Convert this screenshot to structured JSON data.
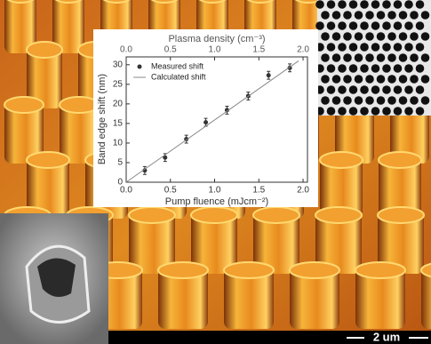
{
  "chart_data": {
    "type": "scatter",
    "xlabel": "Pump fluence (mJcm⁻²)",
    "x2label": "Plasma density (cm⁻³)",
    "ylabel": "Band edge shift (nm)",
    "xlim": [
      0,
      2.05
    ],
    "xticks": [
      {
        "value": 0,
        "label": "0.0"
      },
      0.5,
      {
        "value": 1,
        "label": "1.0"
      },
      1.5,
      {
        "value": 2,
        "label": "2.0"
      }
    ],
    "x2lim": [
      0,
      2.05
    ],
    "x2ticks": [
      {
        "value": 0,
        "label": "0.0"
      },
      0.5,
      {
        "value": 1,
        "label": "1.0"
      },
      1.5,
      {
        "value": 2,
        "label": "2.0"
      }
    ],
    "ylim": [
      0,
      32
    ],
    "yticks": [
      0,
      5,
      10,
      15,
      20,
      25,
      30
    ],
    "legend": "upper left",
    "series": [
      {
        "name": "Measured shift",
        "color": "#333333",
        "x": [
          0.21,
          0.44,
          0.68,
          0.9,
          1.14,
          1.38,
          1.61,
          1.85
        ],
        "values": [
          3,
          6.3,
          11,
          15.3,
          18.4,
          22,
          27.3,
          29.2
        ],
        "errors": [
          1,
          1,
          1,
          1,
          1,
          1,
          1,
          1
        ]
      },
      {
        "name": "Calculated shift",
        "color": "#888888",
        "kind": "line",
        "x": [
          0,
          1.95
        ],
        "values": [
          0,
          31
        ]
      }
    ]
  },
  "scale_bar_label": "2 um"
}
